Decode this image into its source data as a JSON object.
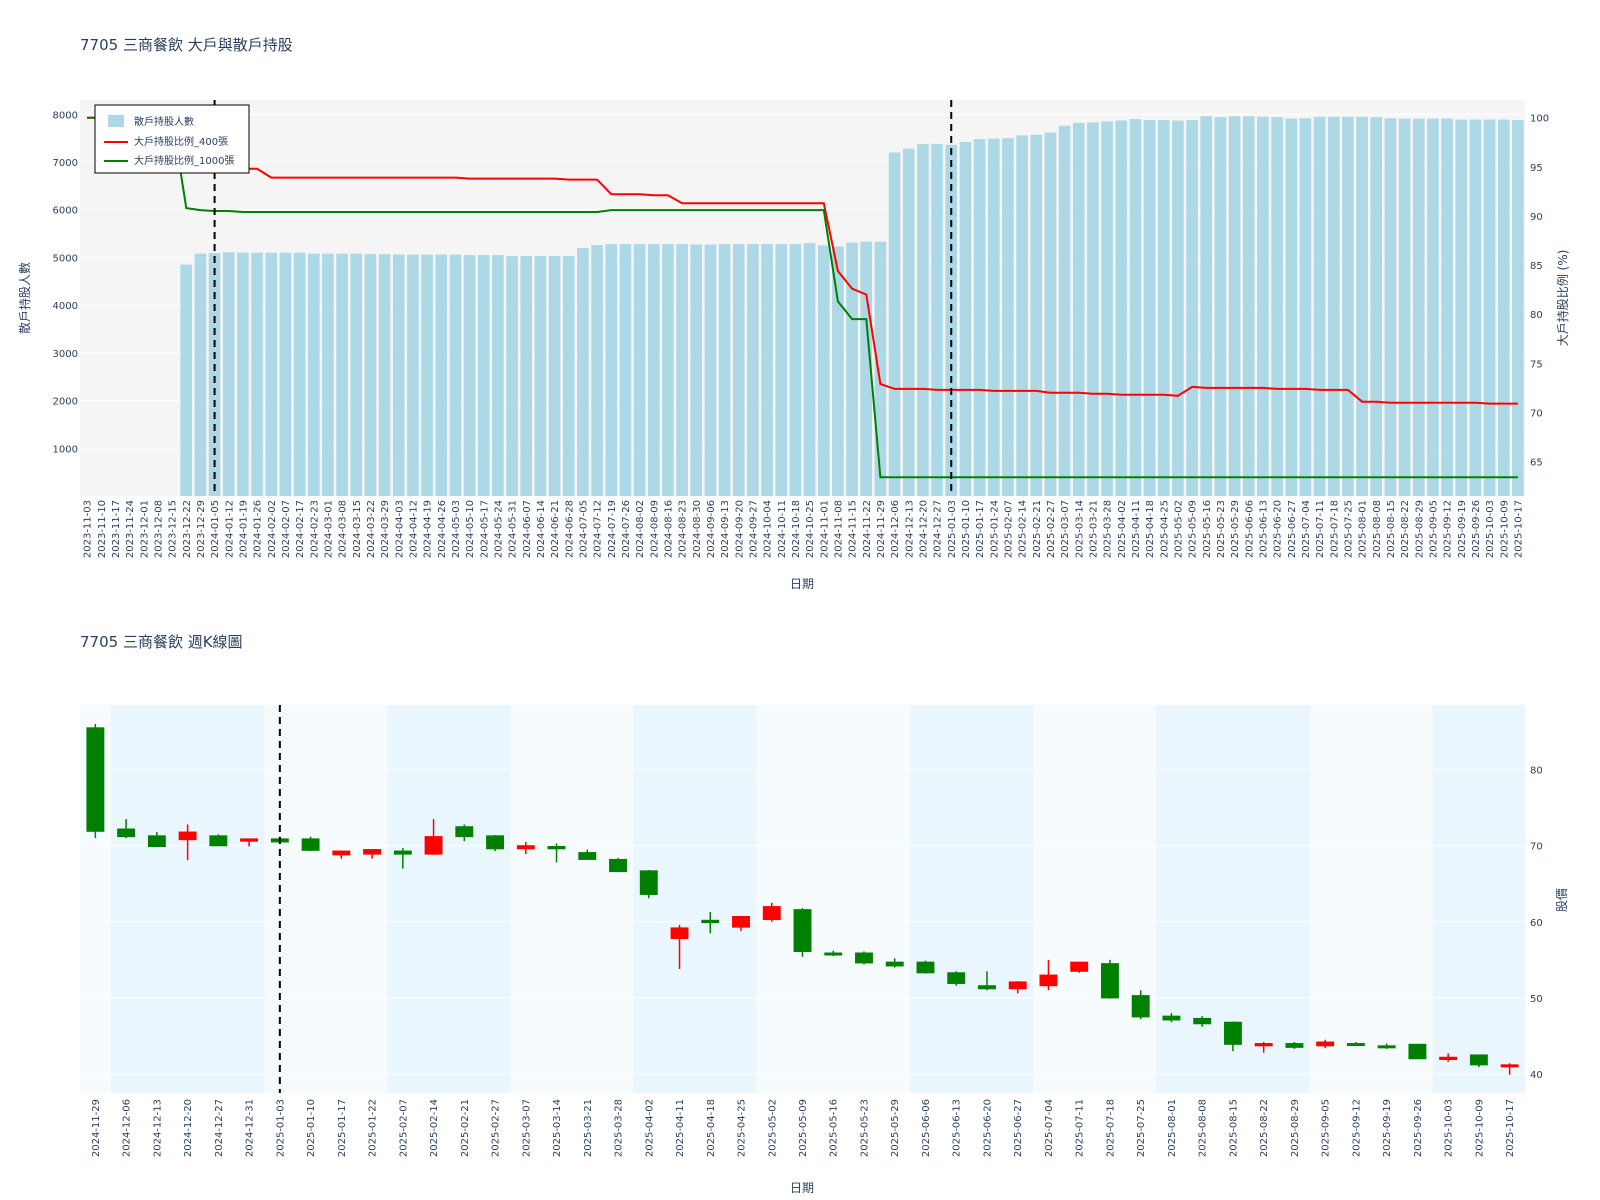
{
  "colors": {
    "bar": "#add8e6",
    "line400": "#ff0000",
    "line1000": "#008000",
    "up": "#ff0000",
    "down": "#008000",
    "plot_bg_top": "#f5f5f5",
    "band": "#eaf6fd",
    "band_light": "#f6fbfe",
    "y1_title": "#add8e6",
    "y2_title": "#ff0000"
  },
  "chart_data": [
    {
      "type": "bar",
      "title": "7705 三商餐飲 大戶與散戶持股",
      "xlabel": "日期",
      "ylabel": "散戶持股人數",
      "y2label": "大戶持股比例 (%)",
      "ylim": [
        0,
        8300
      ],
      "y2lim": [
        61.5,
        101.8
      ],
      "yticks": [
        1000,
        2000,
        3000,
        4000,
        5000,
        6000,
        7000,
        8000
      ],
      "y2ticks": [
        65,
        70,
        75,
        80,
        85,
        90,
        95,
        100
      ],
      "legend_position": "top-left",
      "vlines": [
        "2024-01-05",
        "2025-01-03"
      ],
      "dates": [
        "2023-11-03",
        "2023-11-10",
        "2023-11-17",
        "2023-11-24",
        "2023-12-01",
        "2023-12-08",
        "2023-12-15",
        "2023-12-22",
        "2023-12-29",
        "2024-01-05",
        "2024-01-12",
        "2024-01-19",
        "2024-01-26",
        "2024-02-02",
        "2024-02-07",
        "2024-02-17",
        "2024-02-23",
        "2024-03-01",
        "2024-03-08",
        "2024-03-15",
        "2024-03-22",
        "2024-03-29",
        "2024-04-03",
        "2024-04-12",
        "2024-04-19",
        "2024-04-26",
        "2024-05-03",
        "2024-05-10",
        "2024-05-17",
        "2024-05-24",
        "2024-05-31",
        "2024-06-07",
        "2024-06-14",
        "2024-06-21",
        "2024-06-28",
        "2024-07-05",
        "2024-07-12",
        "2024-07-19",
        "2024-07-26",
        "2024-08-02",
        "2024-08-09",
        "2024-08-16",
        "2024-08-23",
        "2024-08-30",
        "2024-09-06",
        "2024-09-13",
        "2024-09-20",
        "2024-09-27",
        "2024-10-04",
        "2024-10-11",
        "2024-10-18",
        "2024-10-25",
        "2024-11-01",
        "2024-11-08",
        "2024-11-15",
        "2024-11-22",
        "2024-11-29",
        "2024-12-06",
        "2024-12-13",
        "2024-12-20",
        "2024-12-27",
        "2025-01-03",
        "2025-01-10",
        "2025-01-17",
        "2025-01-24",
        "2025-02-07",
        "2025-02-14",
        "2025-02-21",
        "2025-02-27",
        "2025-03-07",
        "2025-03-14",
        "2025-03-21",
        "2025-03-28",
        "2025-04-02",
        "2025-04-11",
        "2025-04-18",
        "2025-04-25",
        "2025-05-02",
        "2025-05-09",
        "2025-05-16",
        "2025-05-23",
        "2025-05-29",
        "2025-06-06",
        "2025-06-13",
        "2025-06-20",
        "2025-06-27",
        "2025-07-04",
        "2025-07-11",
        "2025-07-18",
        "2025-07-25",
        "2025-08-01",
        "2025-08-08",
        "2025-08-15",
        "2025-08-22",
        "2025-08-29",
        "2025-09-05",
        "2025-09-12",
        "2025-09-19",
        "2025-09-26",
        "2025-10-03",
        "2025-10-09",
        "2025-10-17"
      ],
      "series": [
        {
          "name": "散戶持股人數",
          "type": "bar",
          "values": [
            null,
            null,
            null,
            null,
            null,
            null,
            null,
            4850,
            5080,
            5090,
            5110,
            5100,
            5100,
            5100,
            5100,
            5100,
            5080,
            5080,
            5080,
            5080,
            5070,
            5070,
            5060,
            5060,
            5060,
            5060,
            5060,
            5050,
            5050,
            5050,
            5030,
            5030,
            5030,
            5030,
            5030,
            5200,
            5260,
            5280,
            5280,
            5280,
            5280,
            5280,
            5280,
            5270,
            5270,
            5280,
            5280,
            5280,
            5280,
            5280,
            5280,
            5300,
            5250,
            5230,
            5310,
            5330,
            5330,
            7200,
            7280,
            7380,
            7380,
            7360,
            7420,
            7480,
            7490,
            7500,
            7560,
            7570,
            7620,
            7760,
            7820,
            7830,
            7850,
            7870,
            7900,
            7880,
            7880,
            7870,
            7880,
            7960,
            7940,
            7960,
            7960,
            7950,
            7940,
            7910,
            7920,
            7950,
            7950,
            7950,
            7950,
            7940,
            7920,
            7910,
            7910,
            7910,
            7910,
            7890,
            7890,
            7890,
            7890,
            7880
          ]
        },
        {
          "name": "大戶持股比例_400張",
          "type": "line",
          "values": [
            100,
            100,
            100,
            100,
            100,
            100,
            100,
            96,
            95,
            94.9,
            94.9,
            94.8,
            94.8,
            93.9,
            93.9,
            93.9,
            93.9,
            93.9,
            93.9,
            93.9,
            93.9,
            93.9,
            93.9,
            93.9,
            93.9,
            93.9,
            93.9,
            93.8,
            93.8,
            93.8,
            93.8,
            93.8,
            93.8,
            93.8,
            93.7,
            93.7,
            93.7,
            92.2,
            92.2,
            92.2,
            92.1,
            92.1,
            91.3,
            91.3,
            91.3,
            91.3,
            91.3,
            91.3,
            91.3,
            91.3,
            91.3,
            91.3,
            91.3,
            84.4,
            82.6,
            82,
            72.9,
            72.4,
            72.4,
            72.4,
            72.3,
            72.3,
            72.3,
            72.3,
            72.2,
            72.2,
            72.2,
            72.2,
            72.0,
            72.0,
            72.0,
            71.9,
            71.9,
            71.8,
            71.8,
            71.8,
            71.8,
            71.7,
            72.6,
            72.5,
            72.5,
            72.5,
            72.5,
            72.5,
            72.4,
            72.4,
            72.4,
            72.3,
            72.3,
            72.3,
            71.1,
            71.1,
            71.0,
            71.0,
            71.0,
            71.0,
            71.0,
            71.0,
            71.0,
            70.9,
            70.9,
            70.9
          ]
        },
        {
          "name": "大戶持股比例_1000張",
          "type": "line",
          "values": [
            100,
            100,
            100,
            100,
            100,
            100,
            100,
            90.8,
            90.6,
            90.5,
            90.5,
            90.4,
            90.4,
            90.4,
            90.4,
            90.4,
            90.4,
            90.4,
            90.4,
            90.4,
            90.4,
            90.4,
            90.4,
            90.4,
            90.4,
            90.4,
            90.4,
            90.4,
            90.4,
            90.4,
            90.4,
            90.4,
            90.4,
            90.4,
            90.4,
            90.4,
            90.4,
            90.6,
            90.6,
            90.6,
            90.6,
            90.6,
            90.6,
            90.6,
            90.6,
            90.6,
            90.6,
            90.6,
            90.6,
            90.6,
            90.6,
            90.6,
            90.6,
            81.3,
            79.5,
            79.5,
            63.4,
            63.4,
            63.4,
            63.4,
            63.4,
            63.4,
            63.4,
            63.4,
            63.4,
            63.4,
            63.4,
            63.4,
            63.4,
            63.4,
            63.4,
            63.4,
            63.4,
            63.4,
            63.4,
            63.4,
            63.4,
            63.4,
            63.4,
            63.4,
            63.4,
            63.4,
            63.4,
            63.4,
            63.4,
            63.4,
            63.4,
            63.4,
            63.4,
            63.4,
            63.4,
            63.4,
            63.4,
            63.4,
            63.4,
            63.4,
            63.4,
            63.4,
            63.4,
            63.4,
            63.4,
            63.4
          ]
        }
      ]
    },
    {
      "type": "candlestick",
      "title": "7705 三商餐飲 週K線圖",
      "xlabel": "日期",
      "ylabel": "股價",
      "ylim": [
        37.5,
        88.5
      ],
      "yticks": [
        40,
        50,
        60,
        70,
        80
      ],
      "vlines": [
        "2025-01-03"
      ],
      "dates": [
        "2024-11-29",
        "2024-12-06",
        "2024-12-13",
        "2024-12-20",
        "2024-12-27",
        "2024-12-31",
        "2025-01-03",
        "2025-01-10",
        "2025-01-17",
        "2025-01-22",
        "2025-02-07",
        "2025-02-14",
        "2025-02-21",
        "2025-02-27",
        "2025-03-07",
        "2025-03-14",
        "2025-03-21",
        "2025-03-28",
        "2025-04-02",
        "2025-04-11",
        "2025-04-18",
        "2025-04-25",
        "2025-05-02",
        "2025-05-09",
        "2025-05-16",
        "2025-05-23",
        "2025-05-29",
        "2025-06-06",
        "2025-06-13",
        "2025-06-20",
        "2025-06-27",
        "2025-07-04",
        "2025-07-11",
        "2025-07-18",
        "2025-07-25",
        "2025-08-01",
        "2025-08-08",
        "2025-08-15",
        "2025-08-22",
        "2025-08-29",
        "2025-09-05",
        "2025-09-12",
        "2025-09-19",
        "2025-09-26",
        "2025-10-03",
        "2025-10-09",
        "2025-10-17"
      ],
      "open": [
        85.5,
        72.2,
        71.3,
        70.8,
        71.3,
        70.6,
        70.9,
        70.9,
        68.8,
        68.9,
        69.3,
        68.9,
        72.5,
        71.3,
        69.6,
        69.9,
        69.1,
        68.2,
        66.7,
        57.8,
        60.2,
        59.3,
        60.3,
        61.6,
        55.9,
        55.9,
        54.7,
        54.7,
        53.3,
        51.6,
        51.2,
        51.6,
        53.5,
        54.5,
        50.3,
        47.6,
        47.3,
        46.8,
        43.7,
        44.0,
        43.7,
        44.0,
        43.7,
        43.9,
        41.9,
        42.5,
        41.2
      ],
      "high": [
        86.0,
        73.5,
        71.8,
        72.8,
        71.5,
        70.8,
        71.2,
        71.2,
        69.3,
        69.4,
        69.7,
        73.5,
        72.8,
        71.4,
        70.5,
        70.3,
        69.5,
        68.4,
        66.8,
        59.6,
        61.3,
        60.6,
        62.5,
        61.8,
        56.2,
        56.1,
        55.2,
        54.9,
        53.5,
        53.5,
        52.2,
        55.0,
        54.6,
        55.0,
        51.0,
        48.0,
        47.6,
        46.9,
        44.2,
        44.2,
        44.5,
        44.2,
        44.0,
        43.9,
        42.7,
        42.5,
        41.4
      ],
      "low": [
        71.0,
        71.0,
        69.9,
        68.1,
        70.0,
        69.9,
        70.3,
        69.3,
        68.3,
        68.3,
        67.0,
        68.8,
        70.6,
        69.3,
        68.9,
        67.8,
        68.3,
        66.9,
        63.1,
        53.8,
        58.5,
        58.8,
        60.0,
        55.4,
        55.5,
        54.4,
        54.0,
        53.2,
        51.6,
        51.0,
        50.6,
        51.0,
        53.3,
        49.9,
        47.2,
        46.8,
        46.2,
        43.0,
        42.8,
        43.3,
        43.4,
        43.7,
        43.3,
        42.0,
        41.6,
        40.9,
        39.9
      ],
      "close": [
        71.9,
        71.2,
        69.9,
        71.8,
        70.0,
        70.9,
        70.5,
        69.4,
        69.3,
        69.5,
        68.9,
        71.2,
        71.2,
        69.6,
        70.0,
        69.6,
        68.2,
        66.6,
        63.6,
        59.2,
        59.9,
        60.7,
        62.0,
        56.1,
        55.7,
        54.6,
        54.2,
        53.3,
        51.9,
        51.2,
        52.1,
        53.0,
        54.7,
        50.0,
        47.5,
        47.1,
        46.6,
        43.9,
        44.0,
        43.5,
        44.2,
        43.8,
        43.5,
        42.0,
        42.2,
        41.2,
        41.2
      ]
    }
  ]
}
